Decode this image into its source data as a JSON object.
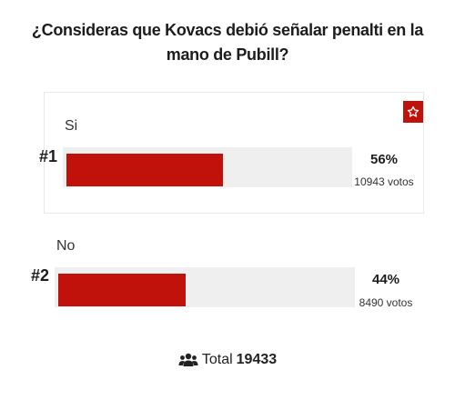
{
  "poll": {
    "question": "¿Consideras que Kovacs debió señalar penalti en la mano de Pubill?",
    "accent_color": "#c1110b",
    "options": [
      {
        "label": "Si",
        "rank": "#1",
        "percent_text": "56%",
        "percent": 56,
        "votes_text": "10943 votos"
      },
      {
        "label": "No",
        "rank": "#2",
        "percent_text": "44%",
        "percent": 44,
        "votes_text": "8490 votos"
      }
    ],
    "star_icon": "star-outline-icon",
    "total": {
      "icon": "users-icon",
      "label": "Total",
      "value": "19433"
    }
  }
}
